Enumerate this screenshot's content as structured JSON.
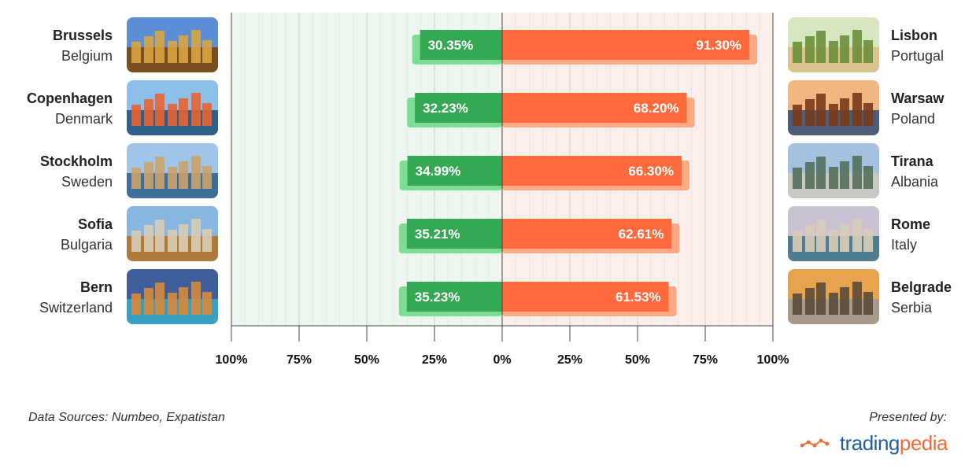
{
  "colors": {
    "left_bar": "#34a853",
    "left_bar_shadow": "#7fdc94",
    "right_bar": "#ff6a3d",
    "right_bar_shadow": "#ffa882",
    "left_bg": "#eef7ef",
    "right_bg": "#fdefec",
    "brand_blue": "#1f5f9e",
    "brand_orange": "#f26b3a"
  },
  "chart_data": {
    "type": "bar",
    "orientation": "horizontal-diverging",
    "xlim": [
      -100,
      100
    ],
    "tick_labels": [
      "100%",
      "75%",
      "50%",
      "25%",
      "0%",
      "25%",
      "50%",
      "75%",
      "100%"
    ],
    "tick_values": [
      -100,
      -75,
      -50,
      -25,
      0,
      25,
      50,
      75,
      100
    ],
    "grid": true,
    "left": {
      "categories": [
        {
          "city": "Brussels",
          "country": "Belgium",
          "photo_icon": "brussels-photo"
        },
        {
          "city": "Copenhagen",
          "country": "Denmark",
          "photo_icon": "copenhagen-photo"
        },
        {
          "city": "Stockholm",
          "country": "Sweden",
          "photo_icon": "stockholm-photo"
        },
        {
          "city": "Sofia",
          "country": "Bulgaria",
          "photo_icon": "sofia-photo"
        },
        {
          "city": "Bern",
          "country": "Switzerland",
          "photo_icon": "bern-photo"
        }
      ],
      "values": [
        30.35,
        32.23,
        34.99,
        35.21,
        35.23
      ],
      "labels": [
        "30.35%",
        "32.23%",
        "34.99%",
        "35.21%",
        "35.23%"
      ]
    },
    "right": {
      "categories": [
        {
          "city": "Lisbon",
          "country": "Portugal",
          "photo_icon": "lisbon-photo"
        },
        {
          "city": "Warsaw",
          "country": "Poland",
          "photo_icon": "warsaw-photo"
        },
        {
          "city": "Tirana",
          "country": "Albania",
          "photo_icon": "tirana-photo"
        },
        {
          "city": "Rome",
          "country": "Italy",
          "photo_icon": "rome-photo"
        },
        {
          "city": "Belgrade",
          "country": "Serbia",
          "photo_icon": "belgrade-photo"
        }
      ],
      "values": [
        91.3,
        68.2,
        66.3,
        62.61,
        61.53
      ],
      "labels": [
        "91.30%",
        "68.20%",
        "66.30%",
        "62.61%",
        "61.53%"
      ]
    }
  },
  "footer": {
    "source": "Data Sources: Numbeo, Expatistan",
    "presented_by": "Presented by:",
    "brand_part1": "trading",
    "brand_part2": "pedia"
  }
}
